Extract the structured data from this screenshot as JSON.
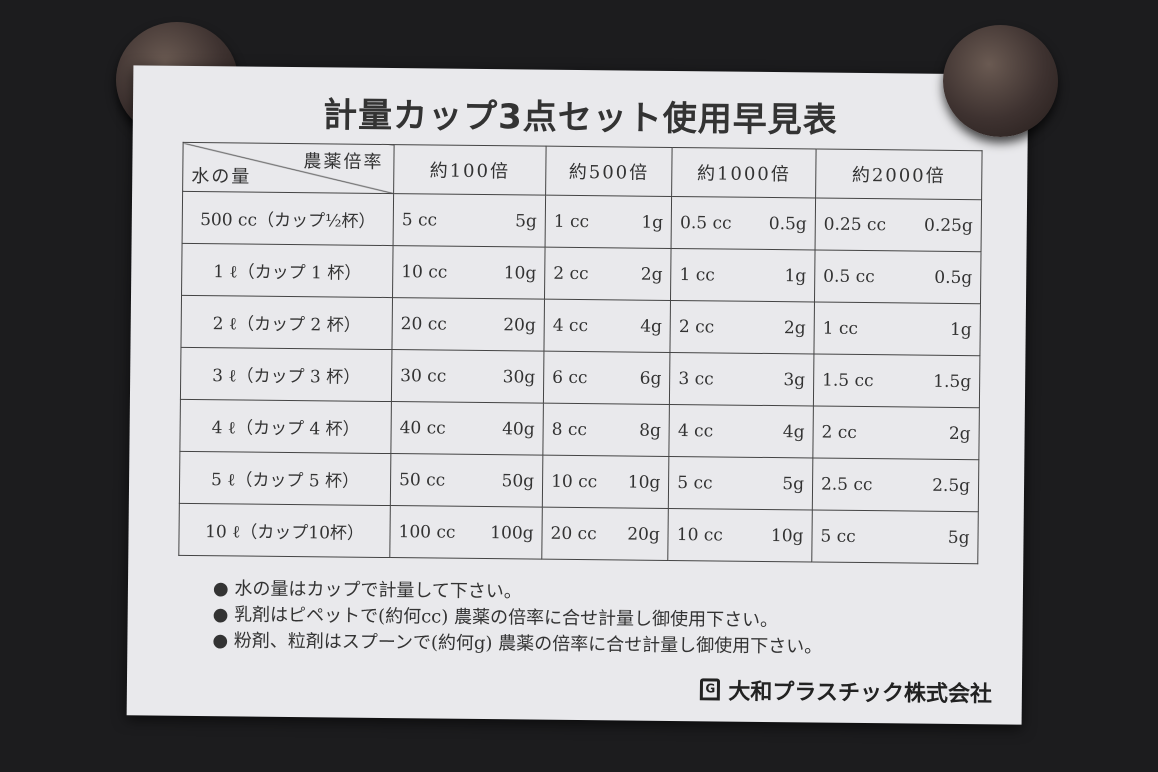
{
  "title": "計量カップ3点セット使用早見表",
  "table": {
    "corner_top": "農薬倍率",
    "corner_bottom": "水の量",
    "headers": [
      "約100倍",
      "約500倍",
      "約1000倍",
      "約2000倍"
    ],
    "rows": [
      {
        "water": "500 cc（カップ½杯）",
        "cells": [
          [
            "5 cc",
            "5g"
          ],
          [
            "1 cc",
            "1g"
          ],
          [
            "0.5 cc",
            "0.5g"
          ],
          [
            "0.25 cc",
            "0.25g"
          ]
        ]
      },
      {
        "water": "1 ℓ（カップ 1 杯）",
        "cells": [
          [
            "10 cc",
            "10g"
          ],
          [
            "2 cc",
            "2g"
          ],
          [
            "1 cc",
            "1g"
          ],
          [
            "0.5 cc",
            "0.5g"
          ]
        ]
      },
      {
        "water": "2 ℓ（カップ 2 杯）",
        "cells": [
          [
            "20 cc",
            "20g"
          ],
          [
            "4 cc",
            "4g"
          ],
          [
            "2 cc",
            "2g"
          ],
          [
            "1 cc",
            "1g"
          ]
        ]
      },
      {
        "water": "3 ℓ（カップ 3 杯）",
        "cells": [
          [
            "30 cc",
            "30g"
          ],
          [
            "6 cc",
            "6g"
          ],
          [
            "3 cc",
            "3g"
          ],
          [
            "1.5 cc",
            "1.5g"
          ]
        ]
      },
      {
        "water": "4 ℓ（カップ 4 杯）",
        "cells": [
          [
            "40 cc",
            "40g"
          ],
          [
            "8 cc",
            "8g"
          ],
          [
            "4 cc",
            "4g"
          ],
          [
            "2 cc",
            "2g"
          ]
        ]
      },
      {
        "water": "5 ℓ（カップ 5 杯）",
        "cells": [
          [
            "50 cc",
            "50g"
          ],
          [
            "10 cc",
            "10g"
          ],
          [
            "5 cc",
            "5g"
          ],
          [
            "2.5 cc",
            "2.5g"
          ]
        ]
      },
      {
        "water": "10 ℓ（カップ10杯）",
        "cells": [
          [
            "100 cc",
            "100g"
          ],
          [
            "20 cc",
            "20g"
          ],
          [
            "10 cc",
            "10g"
          ],
          [
            "5 cc",
            "5g"
          ]
        ]
      }
    ]
  },
  "notes": [
    "水の量はカップで計量して下さい。",
    "乳剤はピペットで(約何cc) 農薬の倍率に合せ計量し御使用下さい。",
    "粉剤、粒剤はスプーンで(約何g) 農薬の倍率に合せ計量し御使用下さい。"
  ],
  "company": "大和プラスチック株式会社",
  "logo_text": "G"
}
